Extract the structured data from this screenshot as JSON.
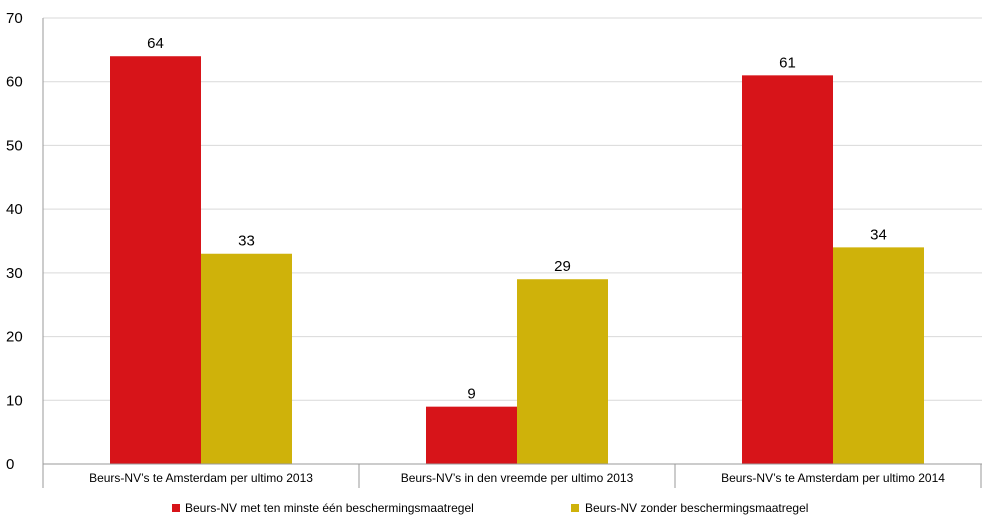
{
  "chart_data": {
    "type": "bar",
    "categories": [
      "Beurs-NV’s te Amsterdam per ultimo 2013",
      "Beurs-NV’s in den vreemde per ultimo 2013",
      "Beurs-NV’s te Amsterdam per ultimo 2014"
    ],
    "series": [
      {
        "name": "Beurs-NV met ten minste één beschermingsmaatregel",
        "values": [
          64,
          9,
          61
        ],
        "color": "#d71419"
      },
      {
        "name": "Beurs-NV zonder beschermingsmaatregel",
        "values": [
          33,
          29,
          34
        ],
        "color": "#cfb20a"
      }
    ],
    "title": "",
    "xlabel": "",
    "ylabel": "",
    "ylim": [
      0,
      70
    ],
    "yticks": [
      0,
      10,
      20,
      30,
      40,
      50,
      60,
      70
    ],
    "grid": true,
    "legend_position": "bottom",
    "colors": {
      "grid": "#d9d9d9",
      "axis": "#9a9a9a"
    }
  }
}
